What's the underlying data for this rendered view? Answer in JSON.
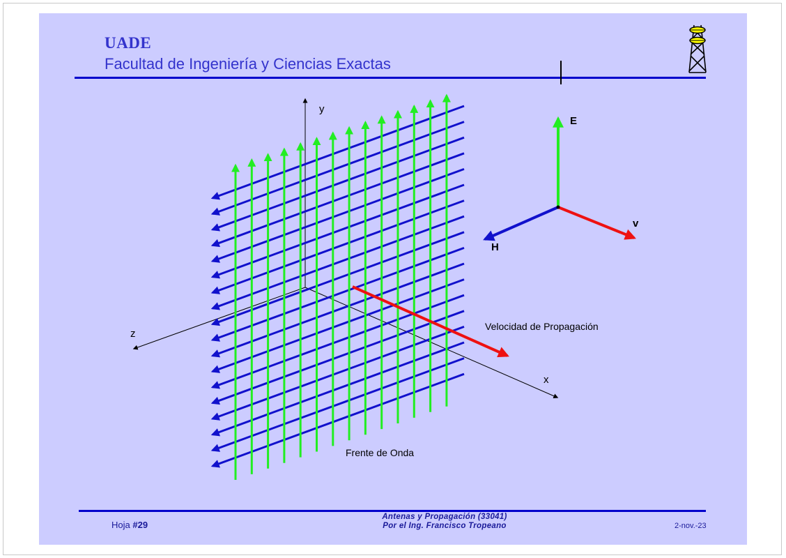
{
  "header": {
    "org": "UADE",
    "faculty": "Facultad de Ingeniería y Ciencias Exactas"
  },
  "figure": {
    "axis_y": "y",
    "axis_z": "z",
    "axis_x": "x",
    "velocity_label": "Velocidad de Propagación",
    "wavefront_label": "Frente de Onda",
    "vec_e": "E",
    "vec_h": "H",
    "vec_v": "v",
    "colors": {
      "electric": "#22ee22",
      "magnetic": "#1111cc",
      "velocity": "#ee1111",
      "axis": "#000000",
      "rule": "#0000cc",
      "background": "#ccccff"
    }
  },
  "footer": {
    "sheet_prefix": "Hoja ",
    "sheet_number": "#29",
    "course": "Antenas y Propagación (33041)",
    "author": "Por el Ing. Francisco Tropeano",
    "date": "2-nov.-23"
  },
  "icons": [
    "transmission-tower-icon"
  ]
}
